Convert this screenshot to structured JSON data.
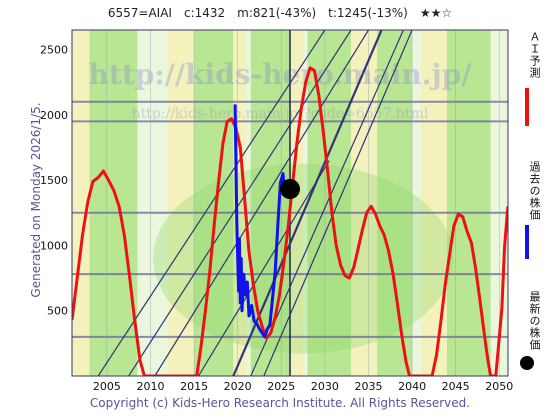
{
  "header": {
    "ticker": "6557=AIAI",
    "current": "c:1432",
    "minimum": "m:821(-43%)",
    "target": "t:1245(-13%)",
    "stars": "★★☆"
  },
  "generated_text": "Generated on Monday 2026/1/5.",
  "copyright": "Copyright (c) Kids-Hero Research Institute. All Rights Reserved.",
  "watermark": {
    "url_big": "http://kids-hero.main.jp/",
    "url_small": "http://kids-hero.main.jp/?code=6557.html"
  },
  "legend": {
    "forecast": "ＡＩ予測",
    "past": "過去の株価",
    "latest": "最新の株価"
  },
  "colors": {
    "forecast": "#ee1111",
    "past": "#1111ee",
    "latest": "#000000",
    "band_green": "#a8e07a",
    "band_yellow": "#f5f0b0",
    "trend_line": "#333377",
    "grid": "#666699"
  },
  "chart_data": {
    "type": "line",
    "title": "",
    "xlabel": "",
    "ylabel": "",
    "xlim": [
      2001,
      2051
    ],
    "ylim": [
      0,
      2650
    ],
    "x_ticks": [
      2005,
      2010,
      2015,
      2020,
      2025,
      2030,
      2035,
      2040,
      2045,
      2050
    ],
    "y_ticks": [
      500,
      1000,
      1500,
      2000,
      2500
    ],
    "horizontal_levels": [
      2100,
      1950,
      1250,
      780,
      300
    ],
    "latest_point": {
      "x": 2026.0,
      "y": 1432
    },
    "series": [
      {
        "name": "ＡＩ予測",
        "points": [
          [
            2001.0,
            430
          ],
          [
            2001.6,
            750
          ],
          [
            2002.2,
            1080
          ],
          [
            2002.8,
            1330
          ],
          [
            2003.4,
            1490
          ],
          [
            2004.0,
            1520
          ],
          [
            2004.6,
            1570
          ],
          [
            2005.2,
            1500
          ],
          [
            2005.8,
            1420
          ],
          [
            2006.4,
            1300
          ],
          [
            2007.0,
            1080
          ],
          [
            2007.6,
            760
          ],
          [
            2008.2,
            420
          ],
          [
            2008.8,
            120
          ],
          [
            2009.3,
            0
          ],
          [
            2015.3,
            0
          ],
          [
            2015.8,
            230
          ],
          [
            2016.3,
            500
          ],
          [
            2016.8,
            800
          ],
          [
            2017.3,
            1150
          ],
          [
            2017.8,
            1480
          ],
          [
            2018.3,
            1780
          ],
          [
            2018.8,
            1950
          ],
          [
            2019.3,
            1970
          ],
          [
            2019.8,
            1900
          ],
          [
            2020.3,
            1750
          ],
          [
            2020.8,
            1350
          ],
          [
            2021.3,
            950
          ],
          [
            2021.8,
            700
          ],
          [
            2022.3,
            500
          ],
          [
            2022.8,
            380
          ],
          [
            2023.3,
            290
          ],
          [
            2023.8,
            330
          ],
          [
            2024.3,
            450
          ],
          [
            2024.8,
            620
          ],
          [
            2025.3,
            870
          ],
          [
            2025.8,
            1150
          ],
          [
            2026.3,
            1470
          ],
          [
            2026.8,
            1790
          ],
          [
            2027.3,
            2050
          ],
          [
            2027.8,
            2250
          ],
          [
            2028.3,
            2360
          ],
          [
            2028.8,
            2340
          ],
          [
            2029.3,
            2150
          ],
          [
            2029.8,
            1880
          ],
          [
            2030.3,
            1580
          ],
          [
            2030.8,
            1250
          ],
          [
            2031.3,
            1000
          ],
          [
            2031.8,
            850
          ],
          [
            2032.3,
            770
          ],
          [
            2032.8,
            750
          ],
          [
            2033.3,
            830
          ],
          [
            2033.8,
            970
          ],
          [
            2034.3,
            1120
          ],
          [
            2034.8,
            1250
          ],
          [
            2035.3,
            1300
          ],
          [
            2035.8,
            1240
          ],
          [
            2036.3,
            1150
          ],
          [
            2036.8,
            1080
          ],
          [
            2037.3,
            960
          ],
          [
            2037.8,
            790
          ],
          [
            2038.3,
            560
          ],
          [
            2038.8,
            320
          ],
          [
            2039.3,
            110
          ],
          [
            2039.7,
            0
          ],
          [
            2042.3,
            0
          ],
          [
            2042.8,
            160
          ],
          [
            2043.3,
            420
          ],
          [
            2043.8,
            700
          ],
          [
            2044.3,
            930
          ],
          [
            2044.8,
            1150
          ],
          [
            2045.3,
            1240
          ],
          [
            2045.8,
            1220
          ],
          [
            2046.3,
            1110
          ],
          [
            2046.8,
            1020
          ],
          [
            2047.3,
            820
          ],
          [
            2047.8,
            570
          ],
          [
            2048.3,
            310
          ],
          [
            2048.7,
            120
          ],
          [
            2049.0,
            0
          ],
          [
            2049.6,
            0
          ],
          [
            2049.9,
            220
          ],
          [
            2050.3,
            520
          ],
          [
            2050.6,
            980
          ],
          [
            2050.9,
            1230
          ],
          [
            2051.0,
            1300
          ]
        ]
      },
      {
        "name": "過去の株価",
        "points": [
          [
            2019.7,
            2080
          ],
          [
            2019.8,
            1650
          ],
          [
            2019.9,
            1180
          ],
          [
            2020.0,
            900
          ],
          [
            2020.1,
            650
          ],
          [
            2020.2,
            1050
          ],
          [
            2020.3,
            560
          ],
          [
            2020.4,
            900
          ],
          [
            2020.5,
            500
          ],
          [
            2020.7,
            780
          ],
          [
            2020.9,
            620
          ],
          [
            2021.1,
            720
          ],
          [
            2021.3,
            460
          ],
          [
            2021.6,
            540
          ],
          [
            2021.9,
            420
          ],
          [
            2022.2,
            400
          ],
          [
            2022.5,
            360
          ],
          [
            2022.8,
            330
          ],
          [
            2023.1,
            300
          ],
          [
            2023.4,
            360
          ],
          [
            2023.7,
            390
          ],
          [
            2024.0,
            600
          ],
          [
            2024.3,
            800
          ],
          [
            2024.6,
            1150
          ],
          [
            2024.9,
            1480
          ],
          [
            2025.2,
            1550
          ],
          [
            2025.4,
            1380
          ],
          [
            2025.6,
            1450
          ],
          [
            2025.8,
            1420
          ],
          [
            2026.0,
            1432
          ]
        ]
      }
    ],
    "legend_position": "right, vertical"
  }
}
